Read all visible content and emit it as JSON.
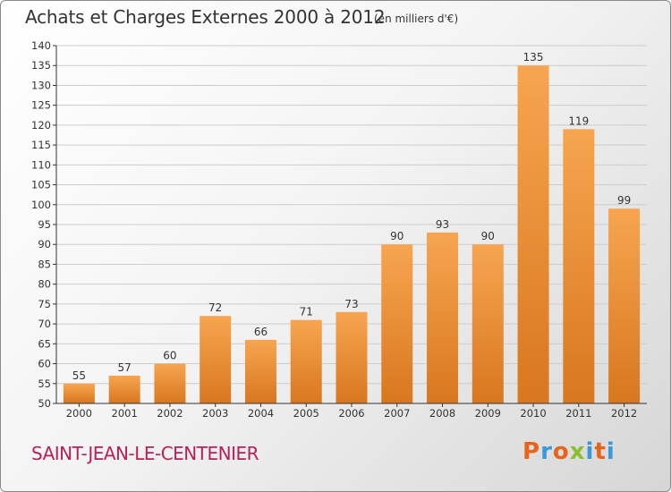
{
  "header": {
    "title": "Achats et Charges Externes 2000 à 2012",
    "subtitle": "(en milliers d'€)"
  },
  "footer": {
    "commune": "SAINT-JEAN-LE-CENTENIER",
    "logo_text": "Proxiti",
    "logo_colors": [
      "#e8641b",
      "#3a9ad9",
      "#e8641b",
      "#8bbf2f",
      "#3a9ad9",
      "#e8641b",
      "#3a9ad9"
    ]
  },
  "colors": {
    "bar_top": "#f7a550",
    "bar_bottom": "#d8771f",
    "grid": "#cccccc",
    "axis": "#333333"
  },
  "chart_data": {
    "type": "bar",
    "title": "Achats et Charges Externes 2000 à 2012",
    "subtitle": "(en milliers d'€)",
    "categories": [
      "2000",
      "2001",
      "2002",
      "2003",
      "2004",
      "2005",
      "2006",
      "2007",
      "2008",
      "2009",
      "2010",
      "2011",
      "2012"
    ],
    "values": [
      55,
      57,
      60,
      72,
      66,
      71,
      73,
      90,
      93,
      90,
      135,
      119,
      99
    ],
    "ylim": [
      50,
      140
    ],
    "yticks": [
      50,
      55,
      60,
      65,
      70,
      75,
      80,
      85,
      90,
      95,
      100,
      105,
      110,
      115,
      120,
      125,
      130,
      135,
      140
    ],
    "grid": true,
    "data_labels": true
  }
}
